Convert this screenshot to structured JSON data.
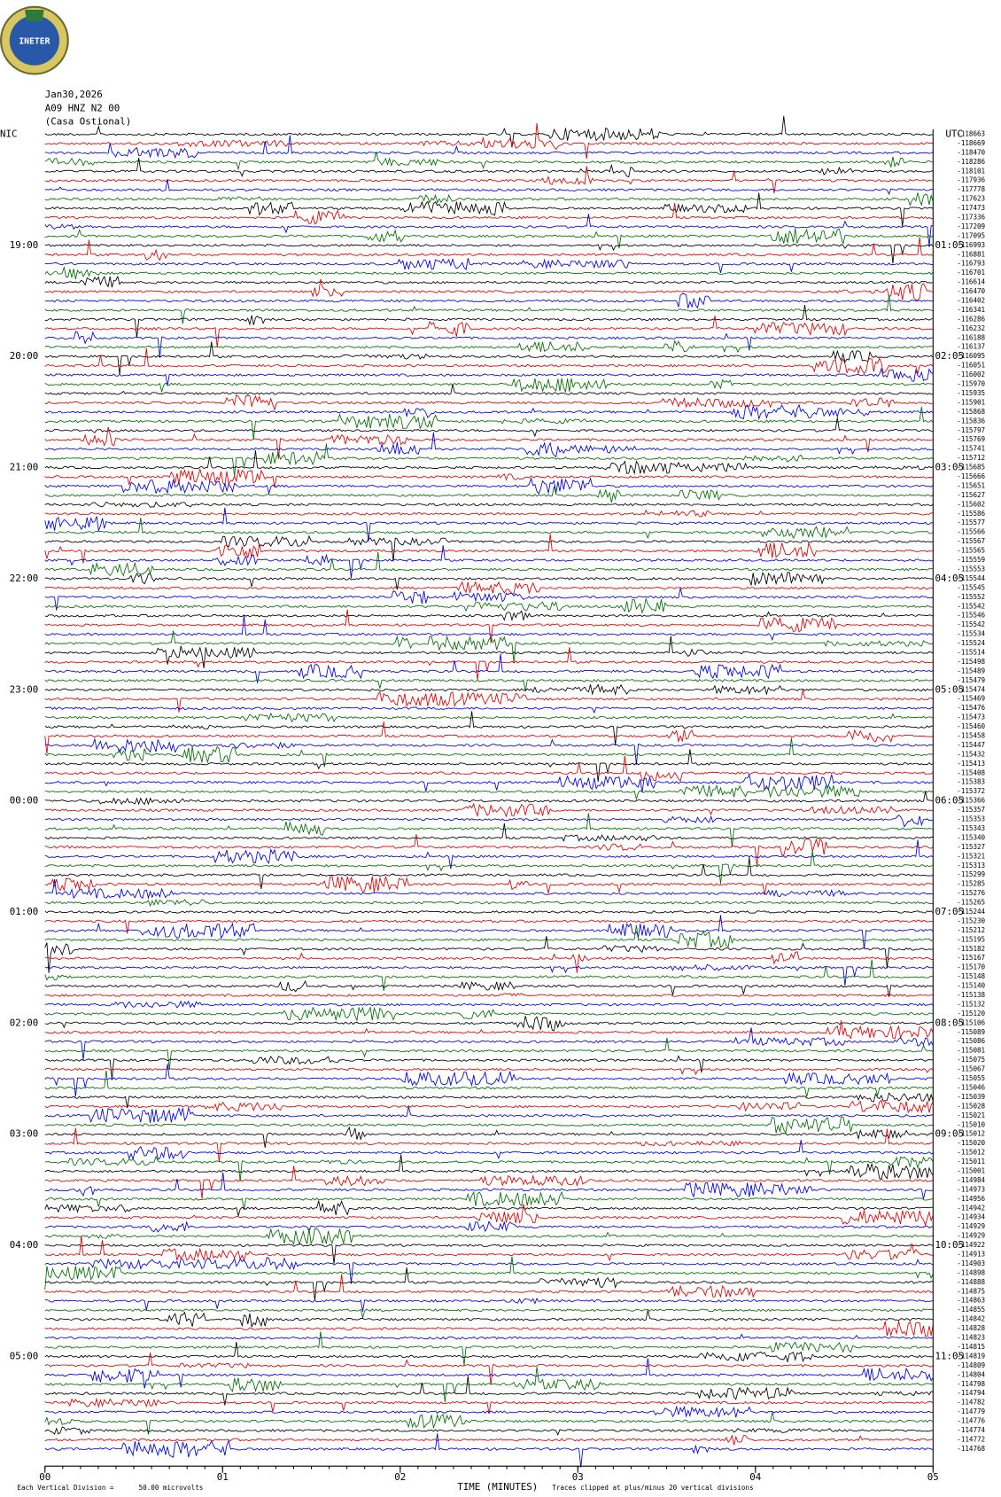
{
  "header": {
    "logo": "INETER",
    "date": "Jan30,2026",
    "station": "A09 HNZ N2 00",
    "location": "(Casa Ostional)"
  },
  "left_label": "NIC",
  "right_label": "UTC",
  "left_hours": [
    "19:00",
    "20:00",
    "21:00",
    "22:00",
    "23:00",
    "00:00",
    "01:00",
    "02:00",
    "03:00",
    "04:00",
    "05:00"
  ],
  "right_hours": [
    "01:05",
    "02:05",
    "03:05",
    "04:05",
    "05:05",
    "06:05",
    "07:05",
    "08:05",
    "09:05",
    "10:05",
    "11:05"
  ],
  "trace_offsets": [
    "-118663",
    "-118669",
    "-118470",
    "-118286",
    "-118101",
    "-117936",
    "-117778",
    "-117623",
    "-117473",
    "-117336",
    "-117209",
    "-117095",
    "-116993",
    "-116881",
    "-116793",
    "-116701",
    "-116614",
    "-116470",
    "-116402",
    "-116341",
    "-116286",
    "-116232",
    "-116188",
    "-116137",
    "-116095",
    "-116051",
    "-116002",
    "-115970",
    "-115935",
    "-115901",
    "-115868",
    "-115836",
    "-115797",
    "-115769",
    "-115741",
    "-115712",
    "-115685",
    "-115666",
    "-115651",
    "-115627",
    "-115602",
    "-115586",
    "-115577",
    "-115566",
    "-115567",
    "-115565",
    "-115559",
    "-115553",
    "-115544",
    "-115545",
    "-115552",
    "-115542",
    "-115546",
    "-115542",
    "-115534",
    "-115524",
    "-115514",
    "-115498",
    "-115489",
    "-115479",
    "-115474",
    "-115469",
    "-115476",
    "-115473",
    "-115460",
    "-115458",
    "-115447",
    "-115432",
    "-115413",
    "-115408",
    "-115383",
    "-115372",
    "-115366",
    "-115357",
    "-115353",
    "-115343",
    "-115340",
    "-115327",
    "-115321",
    "-115313",
    "-115299",
    "-115285",
    "-115276",
    "-115265",
    "-115244",
    "-115230",
    "-115212",
    "-115195",
    "-115182",
    "-115167",
    "-115170",
    "-115148",
    "-115140",
    "-115138",
    "-115132",
    "-115120",
    "-115106",
    "-115089",
    "-115086",
    "-115081",
    "-115075",
    "-115067",
    "-115055",
    "-115046",
    "-115039",
    "-115028",
    "-115021",
    "-115010",
    "-115012",
    "-115020",
    "-115012",
    "-115011",
    "-115001",
    "-114984",
    "-114973",
    "-114956",
    "-114942",
    "-114934",
    "-114929",
    "-114929",
    "-114922",
    "-114913",
    "-114903",
    "-114898",
    "-114888",
    "-114875",
    "-114863",
    "-114855",
    "-114842",
    "-114828",
    "-114823",
    "-114815",
    "-114819",
    "-114809",
    "-114804",
    "-114798",
    "-114794",
    "-114782",
    "-114779",
    "-114776",
    "-114774",
    "-114772",
    "-114768"
  ],
  "x_ticks": [
    "00",
    "01",
    "02",
    "03",
    "04",
    "05"
  ],
  "x_axis_title": "TIME (MINUTES)",
  "footer": {
    "division_label": "Each Vertical Division =",
    "division_value": "50.00 microvolts",
    "clip_note": "Traces clipped at plus/minus 20 vertical divisions"
  }
}
